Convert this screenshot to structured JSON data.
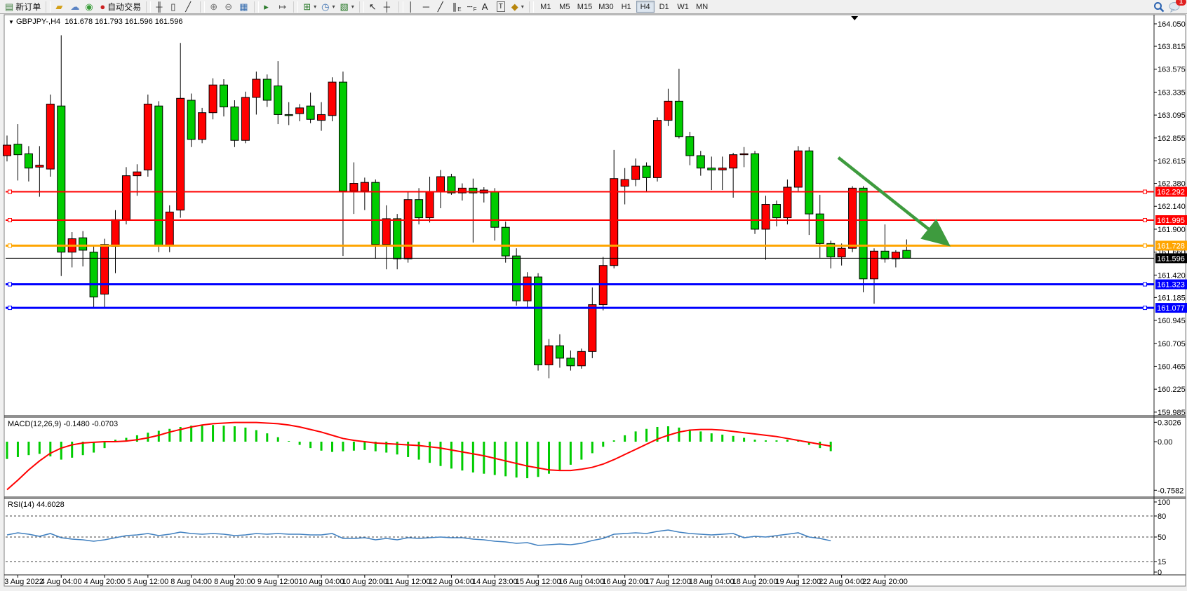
{
  "toolbar": {
    "buttons": [
      {
        "name": "new-order-button",
        "glyph": "▤",
        "color": "#3f7d3f",
        "text": "新订单"
      },
      {
        "type": "sep"
      },
      {
        "name": "gold-bars-button",
        "glyph": "▰",
        "color": "#d4a017"
      },
      {
        "name": "user-cloud-button",
        "glyph": "☁",
        "color": "#5b84c4"
      },
      {
        "name": "signals-button",
        "glyph": "◉",
        "color": "#3a9d3a"
      },
      {
        "name": "auto-trading-button",
        "glyph": "●",
        "color": "#cc2222",
        "text": "自动交易"
      },
      {
        "type": "sep"
      },
      {
        "name": "bar-chart-button",
        "glyph": "╫",
        "color": "#333333"
      },
      {
        "name": "candlestick-chart-button",
        "glyph": "▯",
        "color": "#333333"
      },
      {
        "name": "line-chart-button",
        "glyph": "╱",
        "color": "#333333"
      },
      {
        "type": "sep"
      },
      {
        "name": "zoom-in-button",
        "glyph": "⊕",
        "color": "#777777"
      },
      {
        "name": "zoom-out-button",
        "glyph": "⊖",
        "color": "#777777"
      },
      {
        "name": "tile-windows-button",
        "glyph": "▦",
        "color": "#3a6fb0"
      },
      {
        "type": "sep"
      },
      {
        "name": "auto-scroll-button",
        "glyph": "▸",
        "color": "#2a7a2a"
      },
      {
        "name": "chart-shift-button",
        "glyph": "↦",
        "color": "#555555"
      },
      {
        "type": "sep"
      },
      {
        "name": "new-chart-button",
        "glyph": "⊞",
        "color": "#2a7a2a",
        "dropdown": true
      },
      {
        "name": "periods-button",
        "glyph": "◷",
        "color": "#3a6fb0",
        "dropdown": true
      },
      {
        "name": "templates-button",
        "glyph": "▧",
        "color": "#2a7a2a",
        "dropdown": true
      },
      {
        "type": "sep"
      },
      {
        "name": "cursor-button",
        "glyph": "↖",
        "color": "#222222"
      },
      {
        "name": "crosshair-button",
        "glyph": "┼",
        "color": "#222222"
      },
      {
        "type": "sep"
      },
      {
        "name": "vertical-line-button",
        "glyph": "│",
        "color": "#222222"
      },
      {
        "name": "horizontal-line-button",
        "glyph": "─",
        "color": "#222222"
      },
      {
        "name": "trendline-button",
        "glyph": "╱",
        "color": "#222222"
      },
      {
        "name": "equidistant-channel-button",
        "glyph": "∥",
        "sub": "E",
        "color": "#222222"
      },
      {
        "name": "fibonacci-button",
        "glyph": "┄",
        "sub": "F",
        "color": "#222222"
      },
      {
        "name": "text-button",
        "glyph": "A",
        "color": "#222222"
      },
      {
        "name": "text-label-button",
        "glyph": "T",
        "color": "#222222",
        "boxed": true
      },
      {
        "name": "arrows-button",
        "glyph": "◆",
        "color": "#b8860b",
        "dropdown": true
      },
      {
        "type": "sep"
      }
    ],
    "timeframes": [
      "M1",
      "M5",
      "M15",
      "M30",
      "H1",
      "H4",
      "D1",
      "W1",
      "MN"
    ],
    "active_timeframe": "H4",
    "notification_count": "1"
  },
  "chart": {
    "symbol_period": "GBPJPY-,H4",
    "ohlc_text": "161.678 161.793 161.596 161.596",
    "macd_label": "MACD(12,26,9) -0.1480 -0.0703",
    "rsi_label": "RSI(14) 44.6028"
  },
  "chart_data": {
    "type": "candlestick",
    "symbol": "GBPJPY-",
    "timeframe": "H4",
    "title_ohlc": {
      "open": 161.678,
      "high": 161.793,
      "low": 161.596,
      "close": 161.596
    },
    "bull_color": "#ff0000",
    "bear_color": "#00cc00",
    "wick_color": "#000000",
    "price_axis": {
      "ticks": [
        "164.050",
        "163.815",
        "163.575",
        "163.335",
        "163.095",
        "162.855",
        "162.615",
        "162.380",
        "162.140",
        "161.900",
        "161.660",
        "161.420",
        "161.185",
        "160.945",
        "160.705",
        "160.465",
        "160.225",
        "159.985"
      ],
      "ylim": [
        159.85,
        164.145
      ]
    },
    "x_labels": [
      {
        "t": "3 Aug 2022",
        "bar": 1
      },
      {
        "t": "4 Aug 04:00",
        "bar": 5
      },
      {
        "t": "4 Aug 20:00",
        "bar": 9
      },
      {
        "t": "5 Aug 12:00",
        "bar": 13
      },
      {
        "t": "8 Aug 04:00",
        "bar": 17
      },
      {
        "t": "8 Aug 20:00",
        "bar": 21
      },
      {
        "t": "9 Aug 12:00",
        "bar": 25
      },
      {
        "t": "10 Aug 04:00",
        "bar": 29
      },
      {
        "t": "10 Aug 20:00",
        "bar": 33
      },
      {
        "t": "11 Aug 12:00",
        "bar": 37
      },
      {
        "t": "12 Aug 04:00",
        "bar": 41
      },
      {
        "t": "14 Aug 23:00",
        "bar": 45
      },
      {
        "t": "15 Aug 12:00",
        "bar": 49
      },
      {
        "t": "16 Aug 04:00",
        "bar": 53
      },
      {
        "t": "16 Aug 20:00",
        "bar": 57
      },
      {
        "t": "17 Aug 12:00",
        "bar": 61
      },
      {
        "t": "18 Aug 04:00",
        "bar": 65
      },
      {
        "t": "18 Aug 20:00",
        "bar": 69
      },
      {
        "t": "19 Aug 12:00",
        "bar": 73
      },
      {
        "t": "22 Aug 04:00",
        "bar": 77
      },
      {
        "t": "22 Aug 20:00",
        "bar": 81
      }
    ],
    "candles": [
      [
        162.67,
        162.88,
        162.61,
        162.78
      ],
      [
        162.79,
        163.0,
        162.41,
        162.68
      ],
      [
        162.69,
        162.77,
        162.4,
        162.54
      ],
      [
        162.55,
        162.77,
        162.24,
        162.57
      ],
      [
        162.53,
        163.31,
        162.45,
        163.21
      ],
      [
        163.19,
        163.93,
        161.41,
        161.66
      ],
      [
        161.66,
        161.87,
        161.5,
        161.8
      ],
      [
        161.81,
        161.88,
        161.51,
        161.68
      ],
      [
        161.66,
        161.72,
        161.08,
        161.19
      ],
      [
        161.22,
        161.8,
        161.08,
        161.74
      ],
      [
        161.72,
        162.1,
        161.44,
        162.0
      ],
      [
        162.0,
        162.55,
        161.95,
        162.46
      ],
      [
        162.46,
        162.58,
        162.25,
        162.5
      ],
      [
        162.52,
        163.31,
        162.45,
        163.21
      ],
      [
        163.19,
        163.24,
        161.66,
        161.73
      ],
      [
        161.73,
        162.15,
        161.66,
        162.08
      ],
      [
        162.1,
        163.85,
        162.02,
        163.27
      ],
      [
        163.25,
        163.32,
        162.76,
        162.84
      ],
      [
        162.84,
        163.17,
        162.8,
        163.12
      ],
      [
        163.12,
        163.48,
        163.05,
        163.41
      ],
      [
        163.41,
        163.47,
        163.08,
        163.18
      ],
      [
        163.18,
        163.25,
        162.76,
        162.83
      ],
      [
        162.83,
        163.34,
        162.8,
        163.28
      ],
      [
        163.28,
        163.55,
        163.1,
        163.47
      ],
      [
        163.47,
        163.52,
        163.18,
        163.25
      ],
      [
        163.4,
        163.66,
        163.0,
        163.1
      ],
      [
        163.1,
        163.23,
        162.99,
        163.09
      ],
      [
        163.11,
        163.21,
        163.03,
        163.17
      ],
      [
        163.19,
        163.33,
        163.01,
        163.05
      ],
      [
        163.04,
        163.23,
        162.93,
        163.1
      ],
      [
        163.09,
        163.49,
        163.03,
        163.44
      ],
      [
        163.44,
        163.55,
        161.62,
        162.3
      ],
      [
        162.3,
        162.6,
        162.06,
        162.38
      ],
      [
        162.3,
        162.44,
        162.1,
        162.39
      ],
      [
        162.39,
        162.42,
        161.59,
        161.74
      ],
      [
        161.74,
        162.15,
        161.48,
        162.01
      ],
      [
        162.01,
        162.06,
        161.48,
        161.59
      ],
      [
        161.59,
        162.29,
        161.55,
        162.21
      ],
      [
        162.21,
        162.33,
        161.95,
        162.02
      ],
      [
        162.02,
        162.45,
        161.97,
        162.29
      ],
      [
        162.29,
        162.52,
        162.12,
        162.45
      ],
      [
        162.45,
        162.48,
        162.26,
        162.28
      ],
      [
        162.28,
        162.38,
        162.2,
        162.33
      ],
      [
        162.33,
        162.43,
        161.76,
        162.28
      ],
      [
        162.28,
        162.34,
        162.18,
        162.31
      ],
      [
        162.29,
        162.33,
        161.78,
        161.92
      ],
      [
        161.92,
        161.98,
        161.55,
        161.62
      ],
      [
        161.62,
        161.7,
        161.1,
        161.15
      ],
      [
        161.15,
        161.45,
        161.08,
        161.4
      ],
      [
        161.4,
        161.44,
        160.42,
        160.48
      ],
      [
        160.48,
        160.75,
        160.34,
        160.68
      ],
      [
        160.68,
        160.8,
        160.45,
        160.55
      ],
      [
        160.55,
        160.63,
        160.42,
        160.47
      ],
      [
        160.47,
        160.65,
        160.44,
        160.62
      ],
      [
        160.62,
        161.29,
        160.55,
        161.11
      ],
      [
        161.11,
        161.61,
        161.05,
        161.52
      ],
      [
        161.52,
        162.73,
        161.49,
        162.43
      ],
      [
        162.35,
        162.54,
        162.16,
        162.42
      ],
      [
        162.42,
        162.64,
        162.35,
        162.56
      ],
      [
        162.56,
        162.6,
        162.29,
        162.44
      ],
      [
        162.44,
        163.07,
        162.4,
        163.04
      ],
      [
        163.04,
        163.37,
        162.98,
        163.24
      ],
      [
        163.24,
        163.58,
        162.85,
        162.87
      ],
      [
        162.87,
        162.92,
        162.57,
        162.67
      ],
      [
        162.67,
        162.72,
        162.46,
        162.54
      ],
      [
        162.54,
        162.66,
        162.31,
        162.52
      ],
      [
        162.52,
        162.66,
        162.31,
        162.54
      ],
      [
        162.54,
        162.7,
        162.23,
        162.68
      ],
      [
        162.68,
        162.76,
        162.55,
        162.69
      ],
      [
        162.69,
        162.72,
        161.85,
        161.9
      ],
      [
        161.9,
        162.25,
        161.58,
        162.16
      ],
      [
        162.16,
        162.2,
        161.93,
        162.02
      ],
      [
        162.02,
        162.42,
        161.95,
        162.34
      ],
      [
        162.34,
        162.77,
        162.3,
        162.72
      ],
      [
        162.72,
        162.76,
        161.84,
        162.06
      ],
      [
        162.06,
        162.26,
        161.6,
        161.75
      ],
      [
        161.75,
        161.78,
        161.49,
        161.61
      ],
      [
        161.61,
        161.75,
        161.52,
        161.7
      ],
      [
        161.7,
        162.35,
        161.66,
        162.33
      ],
      [
        162.33,
        162.35,
        161.24,
        161.38
      ],
      [
        161.38,
        161.7,
        161.12,
        161.67
      ],
      [
        161.67,
        161.95,
        161.55,
        161.59
      ],
      [
        161.59,
        161.68,
        161.5,
        161.66
      ],
      [
        161.678,
        161.793,
        161.596,
        161.596
      ]
    ],
    "levels": [
      {
        "price": 162.292,
        "label": "162.292",
        "color": "#ff0000",
        "width": 2
      },
      {
        "price": 161.995,
        "label": "161.995",
        "color": "#ff0000",
        "width": 2
      },
      {
        "price": 161.728,
        "label": "161.728",
        "color": "#ffa500",
        "width": 3
      },
      {
        "price": 161.323,
        "label": "161.323",
        "color": "#0000ff",
        "width": 3
      },
      {
        "price": 161.077,
        "label": "161.077",
        "color": "#0000ff",
        "width": 3
      }
    ],
    "bid_line": {
      "price": 161.596,
      "label": "161.596",
      "color": "#000000"
    },
    "macd": {
      "name": "MACD(12,26,9)",
      "current_macd": -0.148,
      "current_signal": -0.0703,
      "hist_color": "#00cc00",
      "signal_color": "#ff0000",
      "axis_ticks": [
        {
          "label": "0.3026",
          "v": 0.3026
        },
        {
          "label": "0.00",
          "v": 0.0
        },
        {
          "label": "-0.7582",
          "v": -0.7582
        }
      ],
      "hist": [
        -0.27,
        -0.24,
        -0.21,
        -0.19,
        -0.23,
        -0.28,
        -0.25,
        -0.21,
        -0.17,
        -0.1,
        0.03,
        0.06,
        0.1,
        0.14,
        0.17,
        0.2,
        0.23,
        0.25,
        0.26,
        0.26,
        0.25,
        0.24,
        0.22,
        0.18,
        0.13,
        0.07,
        0.01,
        -0.05,
        -0.1,
        -0.14,
        -0.16,
        -0.15,
        -0.14,
        -0.13,
        -0.15,
        -0.17,
        -0.2,
        -0.24,
        -0.28,
        -0.33,
        -0.38,
        -0.42,
        -0.45,
        -0.48,
        -0.5,
        -0.52,
        -0.54,
        -0.56,
        -0.57,
        -0.55,
        -0.5,
        -0.44,
        -0.36,
        -0.28,
        -0.18,
        -0.08,
        0.02,
        0.1,
        0.16,
        0.2,
        0.23,
        0.24,
        0.22,
        0.19,
        0.16,
        0.13,
        0.11,
        0.09,
        0.06,
        0.03,
        0.02,
        0.02,
        0.03,
        0.02,
        -0.05,
        -0.1,
        -0.148
      ],
      "signal": [
        -0.75,
        -0.6,
        -0.44,
        -0.3,
        -0.18,
        -0.1,
        -0.05,
        -0.02,
        -0.01,
        0.0,
        0.0,
        0.01,
        0.03,
        0.06,
        0.1,
        0.15,
        0.19,
        0.23,
        0.26,
        0.28,
        0.29,
        0.3,
        0.3,
        0.3,
        0.29,
        0.28,
        0.26,
        0.23,
        0.19,
        0.15,
        0.1,
        0.05,
        0.02,
        0.0,
        -0.02,
        -0.03,
        -0.04,
        -0.05,
        -0.06,
        -0.08,
        -0.1,
        -0.13,
        -0.16,
        -0.19,
        -0.22,
        -0.26,
        -0.3,
        -0.34,
        -0.38,
        -0.41,
        -0.44,
        -0.45,
        -0.45,
        -0.43,
        -0.4,
        -0.35,
        -0.28,
        -0.2,
        -0.12,
        -0.04,
        0.04,
        0.1,
        0.15,
        0.18,
        0.19,
        0.19,
        0.18,
        0.16,
        0.14,
        0.12,
        0.1,
        0.08,
        0.05,
        0.02,
        -0.01,
        -0.04,
        -0.07
      ]
    },
    "rsi": {
      "name": "RSI(14)",
      "current": 44.6028,
      "color": "#4080c0",
      "dashed_levels": [
        80,
        50,
        15
      ],
      "axis_ticks": [
        {
          "label": "100",
          "v": 100
        },
        {
          "label": "80",
          "v": 80
        },
        {
          "label": "50",
          "v": 50
        },
        {
          "label": "15",
          "v": 15
        },
        {
          "label": "0",
          "v": 0
        }
      ],
      "series": [
        53,
        56,
        54,
        51,
        55,
        49,
        47,
        46,
        44,
        46,
        49,
        52,
        53,
        55,
        52,
        54,
        57,
        55,
        54,
        55,
        54,
        52,
        53,
        55,
        54,
        55,
        54,
        54,
        53,
        53,
        55,
        48,
        48,
        49,
        46,
        48,
        46,
        49,
        48,
        49,
        50,
        49,
        49,
        47,
        46,
        44,
        43,
        41,
        42,
        38,
        39,
        40,
        39,
        41,
        45,
        48,
        54,
        55,
        56,
        55,
        58,
        60,
        57,
        55,
        54,
        53,
        54,
        55,
        49,
        51,
        50,
        52,
        54,
        56,
        50,
        48,
        44.6
      ]
    },
    "annotation_arrow": {
      "from_bar": 76.7,
      "from_price": 162.65,
      "to_bar": 86.6,
      "to_price": 161.76,
      "color": "#3e9b3e"
    },
    "shift_marker_bar": 78.2
  }
}
